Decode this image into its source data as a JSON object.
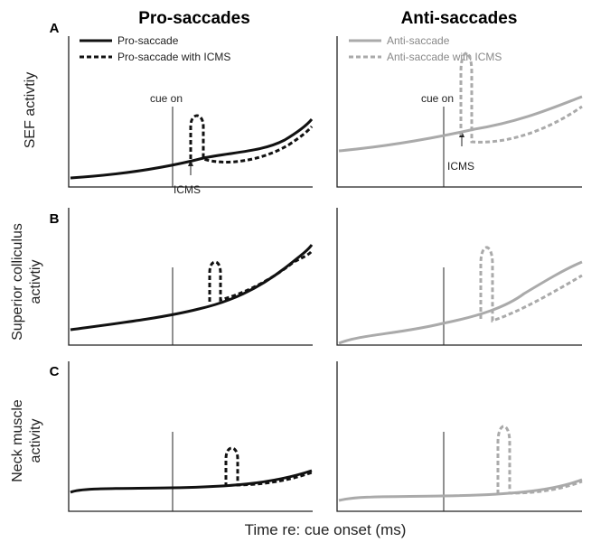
{
  "columns": {
    "left_title": "Pro-saccades",
    "right_title": "Anti-saccades"
  },
  "rows": [
    {
      "panel": "A",
      "ylabel_lines": [
        "SEF activtiy"
      ]
    },
    {
      "panel": "B",
      "ylabel_lines": [
        "Superior colliculus",
        "activtiy"
      ]
    },
    {
      "panel": "C",
      "ylabel_lines": [
        "Neck muscle",
        "activity"
      ]
    }
  ],
  "legend": {
    "left": [
      "Pro-saccade",
      "Pro-saccade with ICMS"
    ],
    "right": [
      "Anti-saccade",
      "Anti-saccade with ICMS"
    ]
  },
  "annotations": {
    "cue_on": "cue on",
    "icms": "ICMS"
  },
  "xlabel": "Time re: cue onset (ms)",
  "colors": {
    "pro": "#111111",
    "anti": "#aaaaaa",
    "axis": "#222222"
  }
}
